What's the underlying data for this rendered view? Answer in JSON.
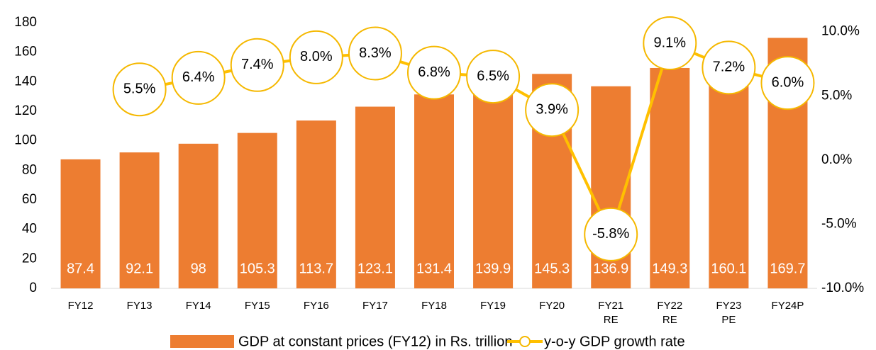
{
  "chart_data": {
    "type": "bar-line",
    "categories": [
      "FY12",
      "FY13",
      "FY14",
      "FY15",
      "FY16",
      "FY17",
      "FY18",
      "FY19",
      "FY20",
      "FY21 RE",
      "FY22 RE",
      "FY23 PE",
      "FY24P"
    ],
    "series": [
      {
        "name": "GDP at constant prices (FY12) in Rs. trillion",
        "color": "#ed7d31",
        "type": "bar",
        "values": [
          87.4,
          92.1,
          98.0,
          105.3,
          113.7,
          123.1,
          131.4,
          139.9,
          145.3,
          136.9,
          149.3,
          160.1,
          169.7
        ]
      },
      {
        "name": "y-o-y GDP growth rate",
        "color": "#ffc000",
        "type": "line",
        "axis": "y2",
        "values": [
          null,
          5.5,
          6.4,
          7.4,
          8.0,
          8.3,
          6.8,
          6.5,
          3.9,
          -5.8,
          9.1,
          7.2,
          6.0
        ],
        "value_labels": [
          null,
          "5.5%",
          "6.4%",
          "7.4%",
          "8.0%",
          "8.3%",
          "6.8%",
          "6.5%",
          "3.9%",
          "-5.8%",
          "9.1%",
          "7.2%",
          "6.0%"
        ]
      }
    ],
    "ylim": [
      0,
      180
    ],
    "yticks": [
      0,
      20,
      40,
      60,
      80,
      100,
      120,
      140,
      160,
      180
    ],
    "y2lim": [
      -10,
      10.7
    ],
    "y2ticks": [
      {
        "value": -10,
        "label": "-10.0%"
      },
      {
        "value": -5,
        "label": "-5.0%"
      },
      {
        "value": 0,
        "label": "0.0%"
      },
      {
        "value": 5,
        "label": "5.0%"
      },
      {
        "value": 10,
        "label": "10.0%"
      }
    ],
    "grid": false,
    "legend": "bottom"
  }
}
